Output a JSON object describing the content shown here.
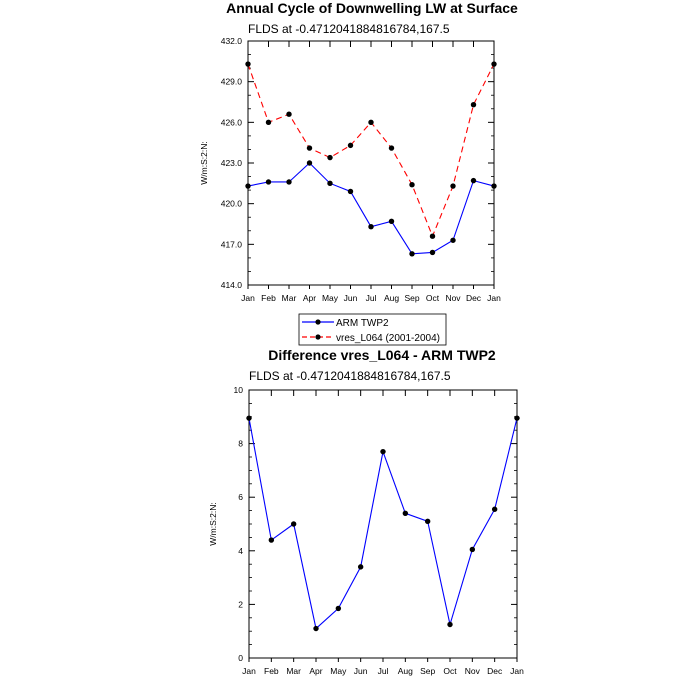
{
  "chart_data": [
    {
      "type": "line",
      "title": "Annual Cycle of Downwelling LW at Surface",
      "subtitle": "FLDS at -0.4712041884816784,167.5",
      "xlabel": "",
      "ylabel": "W/m:S:2:N:",
      "categories": [
        "Jan",
        "Feb",
        "Mar",
        "Apr",
        "May",
        "Jun",
        "Jul",
        "Aug",
        "Sep",
        "Oct",
        "Nov",
        "Dec",
        "Jan"
      ],
      "ylim": [
        414.0,
        432.0
      ],
      "yticks": [
        "414.0",
        "417.0",
        "420.0",
        "423.0",
        "426.0",
        "429.0",
        "432.0"
      ],
      "series": [
        {
          "name": "ARM TWP2",
          "color": "#0000ff",
          "dash": "solid",
          "values": [
            421.3,
            421.6,
            421.6,
            423.0,
            421.5,
            420.9,
            418.3,
            418.7,
            416.3,
            416.4,
            417.3,
            421.7,
            421.3
          ]
        },
        {
          "name": "vres_L064 (2001-2004)",
          "color": "#ff0000",
          "dash": "dashed",
          "values": [
            430.3,
            426.0,
            426.6,
            424.1,
            423.4,
            424.3,
            426.0,
            424.1,
            421.4,
            417.6,
            421.3,
            427.3,
            430.3
          ]
        }
      ],
      "legend": "below"
    },
    {
      "type": "line",
      "title": "Difference vres_L064 - ARM TWP2",
      "subtitle": "FLDS at -0.4712041884816784,167.5",
      "xlabel": "",
      "ylabel": "W/m:S:2:N:",
      "categories": [
        "Jan",
        "Feb",
        "Mar",
        "Apr",
        "May",
        "Jun",
        "Jul",
        "Aug",
        "Sep",
        "Oct",
        "Nov",
        "Dec",
        "Jan"
      ],
      "ylim": [
        0,
        10
      ],
      "yticks": [
        "0",
        "2",
        "4",
        "6",
        "8",
        "10"
      ],
      "series": [
        {
          "color": "#0000ff",
          "dash": "solid",
          "values": [
            8.95,
            4.4,
            5.0,
            1.1,
            1.85,
            3.4,
            7.7,
            5.4,
            5.1,
            1.25,
            4.05,
            5.55,
            8.95
          ]
        }
      ]
    }
  ]
}
